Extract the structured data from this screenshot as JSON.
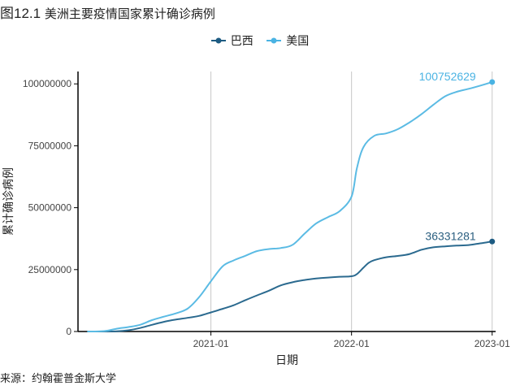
{
  "figure": {
    "title_number": "图12.1",
    "title_text": "美洲主要疫情国家累计确诊病例",
    "source": "来源：约翰霍普金斯大学"
  },
  "chart_data": {
    "type": "line",
    "title": "美洲主要疫情国家累计确诊病例",
    "xlabel": "日期",
    "ylabel": "累计确诊病例",
    "x_range": [
      "2020-01-22",
      "2023-01-10"
    ],
    "ylim": [
      0,
      105000000
    ],
    "x_ticks": [
      {
        "date": "2021-01-01",
        "label": "2021-01"
      },
      {
        "date": "2022-01-01",
        "label": "2022-01"
      },
      {
        "date": "2023-01-01",
        "label": "2023-01"
      }
    ],
    "y_ticks": [
      {
        "value": 0,
        "label": "0"
      },
      {
        "value": 25000000,
        "label": "25000000"
      },
      {
        "value": 50000000,
        "label": "50000000"
      },
      {
        "value": 75000000,
        "label": "75000000"
      },
      {
        "value": 100000000,
        "label": "100000000"
      }
    ],
    "grid": "vertical-major",
    "legend_position": "top",
    "series": [
      {
        "name": "巴西",
        "color": "#2b6a8f",
        "end_label": "36331281",
        "points": [
          [
            "2020-02-15",
            0
          ],
          [
            "2020-04-01",
            10000
          ],
          [
            "2020-05-01",
            90000
          ],
          [
            "2020-06-01",
            500000
          ],
          [
            "2020-07-01",
            1400000
          ],
          [
            "2020-08-01",
            2700000
          ],
          [
            "2020-09-01",
            3900000
          ],
          [
            "2020-10-01",
            4800000
          ],
          [
            "2020-11-01",
            5500000
          ],
          [
            "2020-12-01",
            6300000
          ],
          [
            "2021-01-01",
            7700000
          ],
          [
            "2021-02-01",
            9200000
          ],
          [
            "2021-03-01",
            10600000
          ],
          [
            "2021-04-01",
            12700000
          ],
          [
            "2021-05-01",
            14600000
          ],
          [
            "2021-06-01",
            16500000
          ],
          [
            "2021-07-01",
            18600000
          ],
          [
            "2021-08-01",
            19900000
          ],
          [
            "2021-09-01",
            20800000
          ],
          [
            "2021-10-01",
            21400000
          ],
          [
            "2021-11-01",
            21800000
          ],
          [
            "2021-12-01",
            22100000
          ],
          [
            "2022-01-01",
            22300000
          ],
          [
            "2022-01-15",
            23200000
          ],
          [
            "2022-02-01",
            25800000
          ],
          [
            "2022-02-15",
            27800000
          ],
          [
            "2022-03-01",
            28800000
          ],
          [
            "2022-04-01",
            30000000
          ],
          [
            "2022-05-01",
            30500000
          ],
          [
            "2022-06-01",
            31300000
          ],
          [
            "2022-07-01",
            33000000
          ],
          [
            "2022-08-01",
            34000000
          ],
          [
            "2022-09-01",
            34400000
          ],
          [
            "2022-10-01",
            34700000
          ],
          [
            "2022-11-01",
            34900000
          ],
          [
            "2022-12-01",
            35600000
          ],
          [
            "2023-01-01",
            36331281
          ]
        ]
      },
      {
        "name": "美国",
        "color": "#4ab3e3",
        "end_label": "100752629",
        "points": [
          [
            "2020-02-15",
            0
          ],
          [
            "2020-03-01",
            100
          ],
          [
            "2020-04-01",
            200000
          ],
          [
            "2020-05-01",
            1100000
          ],
          [
            "2020-06-01",
            1800000
          ],
          [
            "2020-07-01",
            2700000
          ],
          [
            "2020-08-01",
            4600000
          ],
          [
            "2020-09-01",
            6000000
          ],
          [
            "2020-10-01",
            7300000
          ],
          [
            "2020-11-01",
            9200000
          ],
          [
            "2020-12-01",
            13800000
          ],
          [
            "2021-01-01",
            20300000
          ],
          [
            "2021-02-01",
            26400000
          ],
          [
            "2021-03-01",
            28700000
          ],
          [
            "2021-04-01",
            30600000
          ],
          [
            "2021-05-01",
            32500000
          ],
          [
            "2021-06-01",
            33300000
          ],
          [
            "2021-07-01",
            33700000
          ],
          [
            "2021-08-01",
            35000000
          ],
          [
            "2021-09-01",
            39500000
          ],
          [
            "2021-10-01",
            43600000
          ],
          [
            "2021-11-01",
            46200000
          ],
          [
            "2021-12-01",
            48600000
          ],
          [
            "2022-01-01",
            54500000
          ],
          [
            "2022-01-15",
            66000000
          ],
          [
            "2022-02-01",
            74500000
          ],
          [
            "2022-03-01",
            79000000
          ],
          [
            "2022-04-01",
            80000000
          ],
          [
            "2022-05-01",
            81700000
          ],
          [
            "2022-06-01",
            84500000
          ],
          [
            "2022-07-01",
            87700000
          ],
          [
            "2022-08-01",
            91500000
          ],
          [
            "2022-09-01",
            95000000
          ],
          [
            "2022-10-01",
            96800000
          ],
          [
            "2022-11-01",
            98000000
          ],
          [
            "2022-12-01",
            99300000
          ],
          [
            "2023-01-01",
            100752629
          ]
        ]
      }
    ]
  }
}
